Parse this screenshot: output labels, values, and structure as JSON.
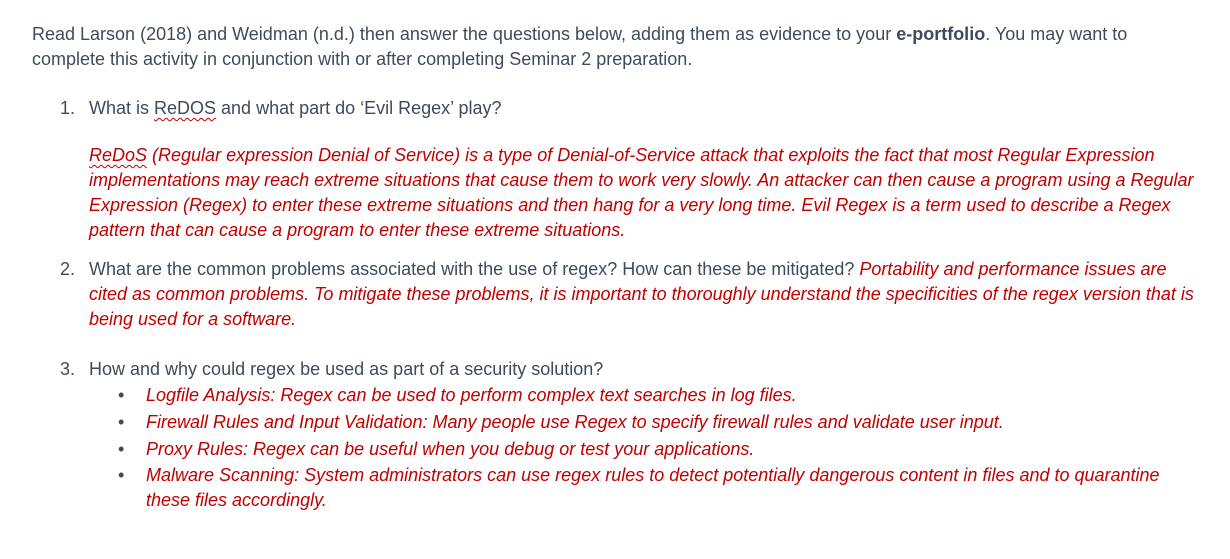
{
  "intro": {
    "text_before": "Read Larson (2018) and Weidman (n.d.) then answer the questions below, adding them as evidence to your ",
    "bold": "e-portfolio",
    "text_after": ". You may want to complete this activity in conjunction with or after completing Seminar 2 preparation."
  },
  "questions": [
    {
      "number": "1.",
      "text_before": "What is ",
      "squiggle": "ReDOS",
      "text_after": " and what part do ‘Evil Regex’ play?",
      "answer_squiggle": "ReDoS",
      "answer_rest": " (Regular expression Denial of Service) is a type of Denial-of-Service attack that exploits the fact that most Regular Expression implementations may reach extreme situations that cause them to work very slowly. An attacker can then cause a program using a Regular Expression (Regex) to enter these extreme situations and then hang for a very long time. Evil Regex is a term used to describe a Regex pattern that can cause a program to enter these extreme situations."
    },
    {
      "number": "2.",
      "text": "What are the common problems associated with the use of regex? How can these be mitigated? ",
      "answer": "Portability and performance issues are cited as common problems. To mitigate these problems, it is important to thoroughly understand the specificities of the regex version that is being used for a software."
    },
    {
      "number": "3.",
      "text": "How and why could regex be used as part of a security solution?",
      "bullets": [
        "Logfile Analysis: Regex can be used to perform complex text searches in log files.",
        "Firewall Rules and Input Validation: Many people use Regex to specify firewall rules and validate user input.",
        "Proxy Rules: Regex can be useful when you debug or test your applications.",
        "Malware Scanning: System administrators can use regex rules to detect potentially dangerous content in files and to quarantine these files accordingly."
      ]
    }
  ],
  "bullet_glyph": "•",
  "colors": {
    "body_text": "#404a5c",
    "answer_text": "#c00000"
  }
}
